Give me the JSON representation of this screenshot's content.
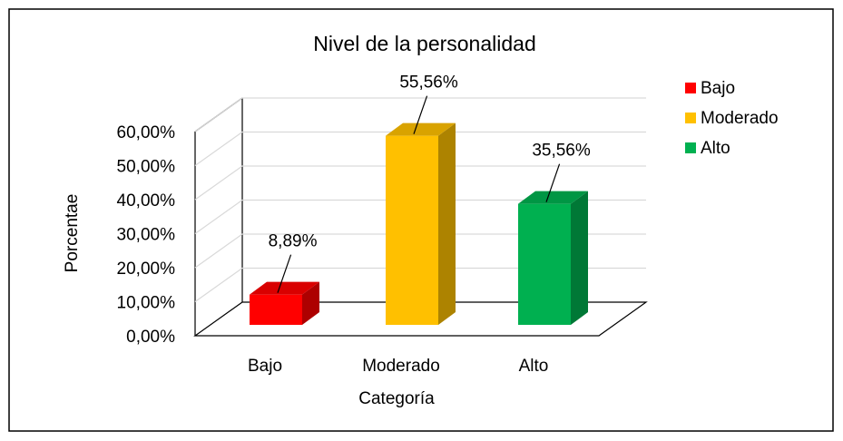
{
  "chart_data": {
    "type": "bar3d",
    "title": "Nivel de la personalidad",
    "x_label": "Categoría",
    "y_label": "Porcentae",
    "categories": [
      "Bajo",
      "Moderado",
      "Alto"
    ],
    "values": [
      8.89,
      55.56,
      35.56
    ],
    "value_labels": [
      "8,89%",
      "55,56%",
      "35,56%"
    ],
    "colors": [
      "#ff0000",
      "#ffc000",
      "#00b050"
    ],
    "ylim": [
      0,
      60
    ],
    "yticks": [
      {
        "value": 0,
        "label": "0,00%"
      },
      {
        "value": 10,
        "label": "10,00%"
      },
      {
        "value": 20,
        "label": "20,00%"
      },
      {
        "value": 30,
        "label": "30,00%"
      },
      {
        "value": 40,
        "label": "40,00%"
      },
      {
        "value": 50,
        "label": "50,00%"
      },
      {
        "value": 60,
        "label": "60,00%"
      }
    ],
    "grid": true,
    "legend": "right"
  }
}
